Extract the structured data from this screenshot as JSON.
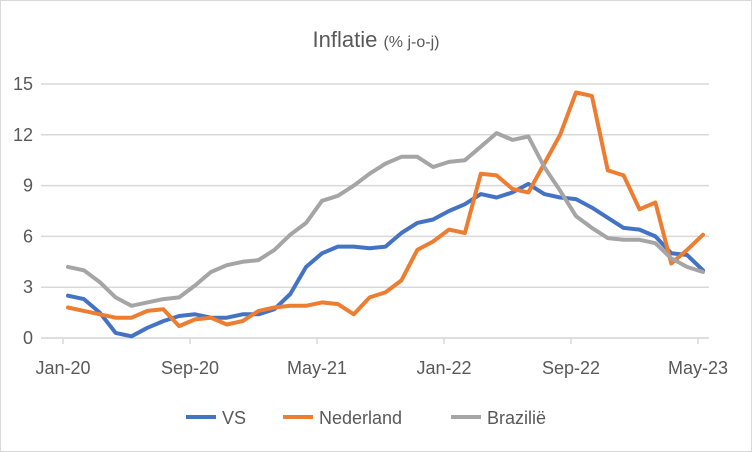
{
  "chart_data": {
    "type": "line",
    "title": "Inflatie",
    "subtitle": "(% j-o-j)",
    "xlabel": "",
    "ylabel": "",
    "ylim": [
      0,
      15
    ],
    "yticks": [
      0,
      3,
      6,
      9,
      12,
      15
    ],
    "xtick_labels": [
      "Jan-20",
      "Sep-20",
      "May-21",
      "Jan-22",
      "Sep-22",
      "May-23"
    ],
    "x_start": "Jan-20",
    "x_end": "May-23",
    "grid": true,
    "legend_position": "bottom",
    "series": [
      {
        "name": "VS",
        "color": "#4472C4",
        "values": [
          2.5,
          2.3,
          1.5,
          0.3,
          0.1,
          0.6,
          1.0,
          1.3,
          1.4,
          1.2,
          1.2,
          1.4,
          1.4,
          1.7,
          2.6,
          4.2,
          5.0,
          5.4,
          5.4,
          5.3,
          5.4,
          6.2,
          6.8,
          7.0,
          7.5,
          7.9,
          8.5,
          8.3,
          8.6,
          9.1,
          8.5,
          8.3,
          8.2,
          7.7,
          7.1,
          6.5,
          6.4,
          6.0,
          5.0,
          4.9,
          4.0
        ]
      },
      {
        "name": "Nederland",
        "color": "#ED7D31",
        "values": [
          1.8,
          1.6,
          1.4,
          1.2,
          1.2,
          1.6,
          1.7,
          0.7,
          1.1,
          1.2,
          0.8,
          1.0,
          1.6,
          1.8,
          1.9,
          1.9,
          2.1,
          2.0,
          1.4,
          2.4,
          2.7,
          3.4,
          5.2,
          5.7,
          6.4,
          6.2,
          9.7,
          9.6,
          8.8,
          8.6,
          10.3,
          12.0,
          14.5,
          14.3,
          9.9,
          9.6,
          7.6,
          8.0,
          4.4,
          5.2,
          6.1
        ]
      },
      {
        "name": "Brazilië",
        "color": "#A5A5A5",
        "values": [
          4.2,
          4.0,
          3.3,
          2.4,
          1.9,
          2.1,
          2.3,
          2.4,
          3.1,
          3.9,
          4.3,
          4.5,
          4.6,
          5.2,
          6.1,
          6.8,
          8.1,
          8.4,
          9.0,
          9.7,
          10.3,
          10.7,
          10.7,
          10.1,
          10.4,
          10.5,
          11.3,
          12.1,
          11.7,
          11.9,
          10.1,
          8.7,
          7.2,
          6.5,
          5.9,
          5.8,
          5.8,
          5.6,
          4.7,
          4.2,
          3.9
        ]
      }
    ]
  }
}
